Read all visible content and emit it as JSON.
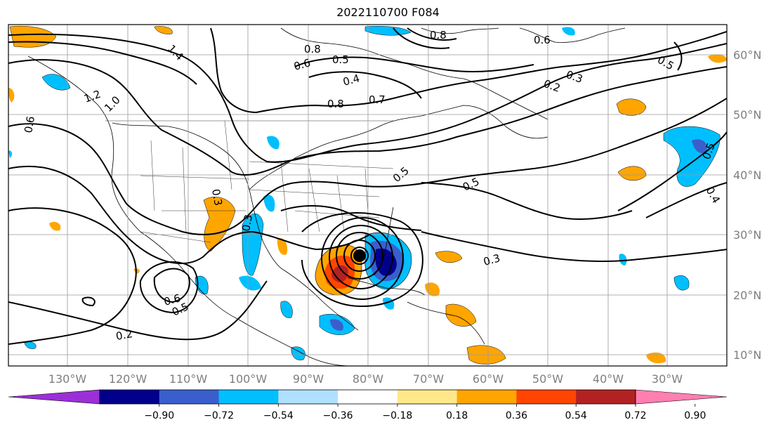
{
  "title": "2022110700 F084",
  "lon_labels": [
    "130°W",
    "120°W",
    "110°W",
    "100°W",
    "90°W",
    "80°W",
    "70°W",
    "60°W",
    "50°W",
    "40°W",
    "30°W"
  ],
  "lat_labels": [
    "60°N",
    "50°N",
    "40°N",
    "30°N",
    "20°N",
    "10°N"
  ],
  "colorbar": {
    "colors": [
      "#9b30d9",
      "#00008b",
      "#3a5fcd",
      "#00bfff",
      "#b0e0ff",
      "#ffffff",
      "#ffe88a",
      "#ffa500",
      "#ff4500",
      "#b22222",
      "#ff7fb0"
    ],
    "labels": [
      "−0.90",
      "−0.72",
      "−0.54",
      "−0.36",
      "−0.18",
      "0.18",
      "0.36",
      "0.54",
      "0.72",
      "0.90"
    ]
  },
  "contour_labels": [
    "0.8",
    "0.6",
    "0.5",
    "0.4",
    "0.8",
    "0.7",
    "0.3",
    "0.2",
    "0.6",
    "0.5",
    "1.4",
    "1.2",
    "1.0",
    "0.6",
    "0.3",
    "0.3",
    "0.6",
    "0.5",
    "0.2",
    "0.5",
    "0.3",
    "0.5",
    "0.5",
    "0.4",
    "0.8"
  ],
  "marker": "storm-center"
}
